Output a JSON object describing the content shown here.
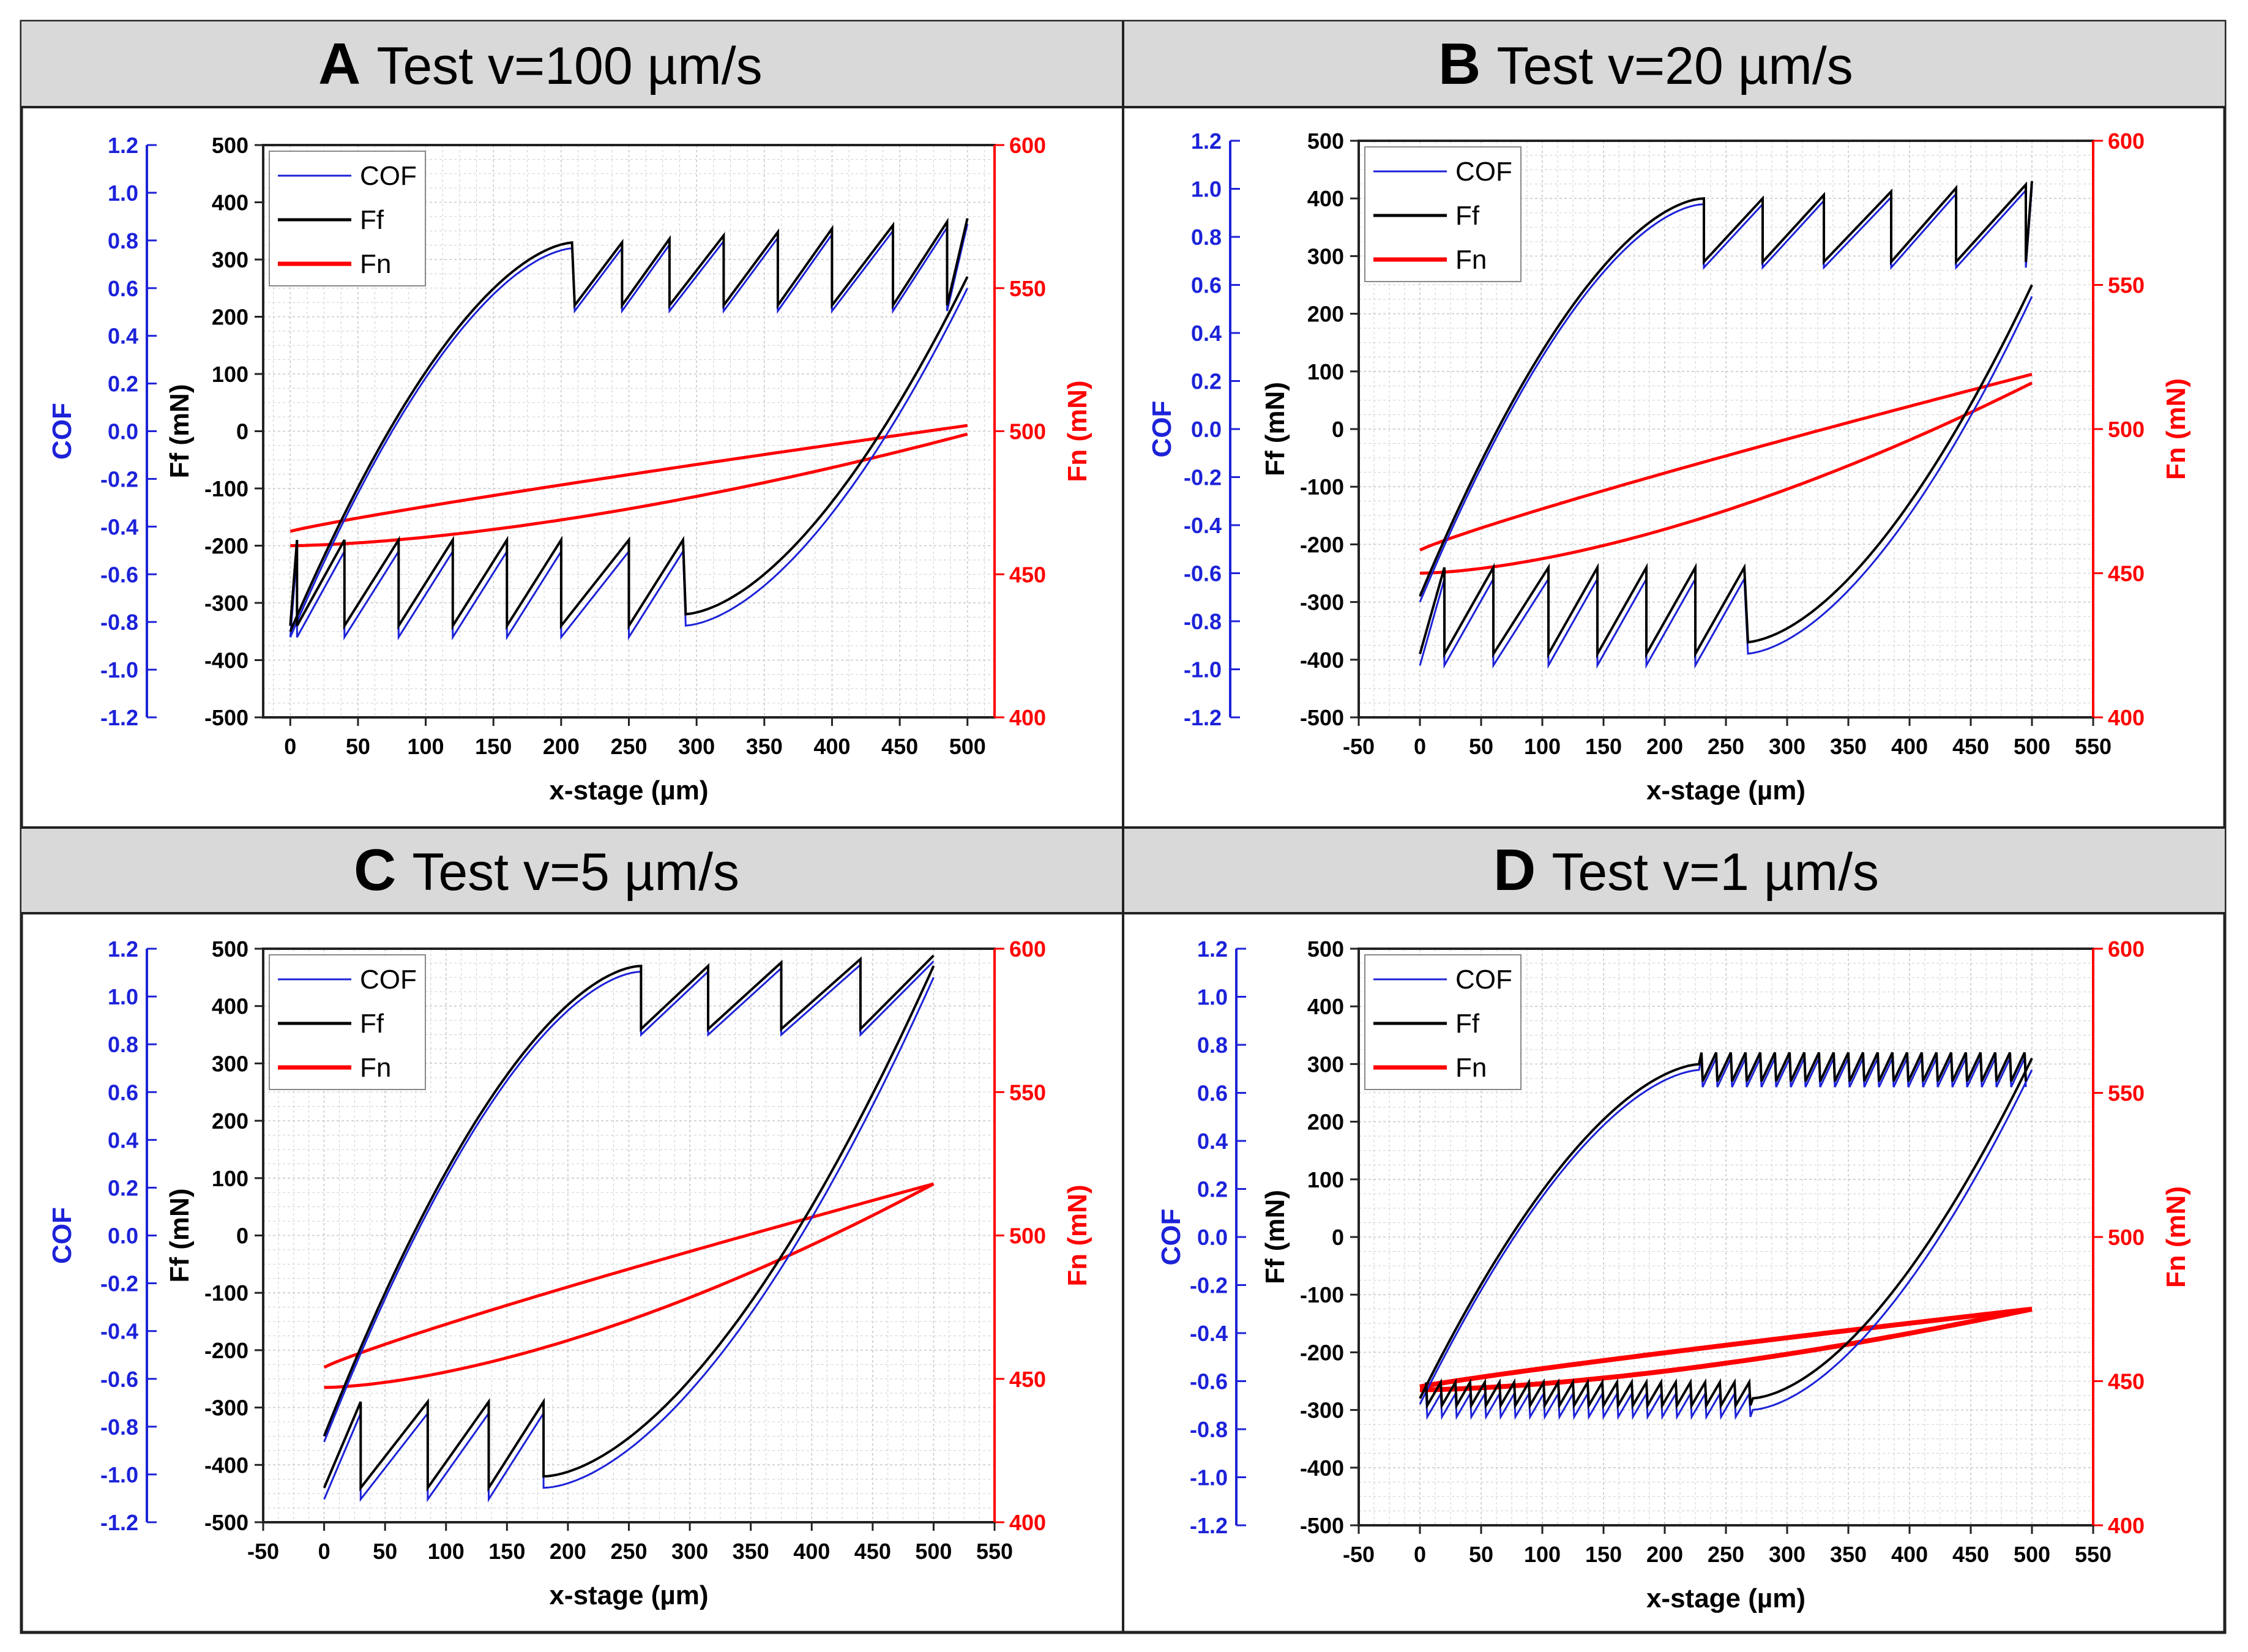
{
  "figure": {
    "colors": {
      "cof": "#1c22d8",
      "ff": "#000000",
      "fn": "#ff0000",
      "header_bg": "#d9d9d9",
      "grid": "#cfcfcf",
      "frame": "#222222"
    },
    "axis_labels": {
      "cof": "COF",
      "ff": "Ff (mN)",
      "fn": "Fn (mN)",
      "x": "x-stage (µm)"
    },
    "legend": [
      "COF",
      "Ff",
      "Fn"
    ]
  },
  "chart_data": [
    {
      "id": "A",
      "type": "line",
      "letter": "A",
      "title": "Test v=100 µm/s",
      "xlabel": "x-stage (µm)",
      "xlim": [
        -20,
        520
      ],
      "xticks": [
        0,
        50,
        100,
        150,
        200,
        250,
        300,
        350,
        400,
        450,
        500
      ],
      "cof_ticks": [
        "1.2",
        "1.0",
        "0.8",
        "0.6",
        "0.4",
        "0.2",
        "0.0",
        "-0.2",
        "-0.4",
        "-0.6",
        "-0.8",
        "-1.0",
        "-1.2"
      ],
      "ff_ticks": [
        "500",
        "400",
        "300",
        "200",
        "100",
        "0",
        "-100",
        "-200",
        "-300",
        "-400",
        "-500"
      ],
      "fn_ticks": [
        "600",
        "550",
        "500",
        "450",
        "400"
      ],
      "cof_range": [
        -1.2,
        1.2
      ],
      "ff_range": [
        -500,
        500
      ],
      "fn_range": [
        400,
        600
      ],
      "series": [
        {
          "name": "Ff",
          "values_mN": {
            "forward_start": -350,
            "forward_end_level": 330,
            "forward_drop": 110,
            "forward_slips": [
              210,
              245,
              280,
              320,
              360,
              400,
              445,
              485
            ],
            "backward_start": 270,
            "backward_end_level": -320,
            "backward_peaks": -230,
            "backward_slips": [
              290,
              250,
              200,
              160,
              120,
              80,
              40,
              5
            ]
          }
        },
        {
          "name": "Fn",
          "values_mN": {
            "upper_start": 465,
            "upper_end": 502,
            "lower_start": 460,
            "lower_end": 499
          }
        }
      ]
    },
    {
      "id": "B",
      "type": "line",
      "letter": "B",
      "title": "Test v=20 µm/s",
      "xlabel": "x-stage (µm)",
      "xlim": [
        -50,
        550
      ],
      "xticks": [
        -50,
        0,
        50,
        100,
        150,
        200,
        250,
        300,
        350,
        400,
        450,
        500,
        550
      ],
      "cof_ticks": [
        "1.2",
        "1.0",
        "0.8",
        "0.6",
        "0.4",
        "0.2",
        "0.0",
        "-0.2",
        "-0.4",
        "-0.6",
        "-0.8",
        "-1.0",
        "-1.2"
      ],
      "ff_ticks": [
        "500",
        "400",
        "300",
        "200",
        "100",
        "0",
        "-100",
        "-200",
        "-300",
        "-400",
        "-500"
      ],
      "fn_ticks": [
        "600",
        "550",
        "500",
        "450",
        "400"
      ],
      "cof_range": [
        -1.2,
        1.2
      ],
      "ff_range": [
        -500,
        500
      ],
      "fn_range": [
        400,
        600
      ],
      "series": [
        {
          "name": "Ff",
          "values_mN": {
            "forward_start": -290,
            "forward_end_level": 400,
            "forward_slips": [
              232,
              280,
              330,
              385,
              438,
              495
            ],
            "backward_start": 250,
            "backward_end_level": -370,
            "backward_slips": [
              265,
              225,
              185,
              145,
              105,
              60,
              20
            ]
          }
        },
        {
          "name": "Fn",
          "values_mN": {
            "upper_start": 458,
            "upper_end": 519,
            "lower_start": 450,
            "lower_end": 516
          }
        }
      ]
    },
    {
      "id": "C",
      "type": "line",
      "letter": "C",
      "title": "Test v=5 µm/s",
      "xlabel": "x-stage (µm)",
      "xlim": [
        -50,
        550
      ],
      "xticks": [
        -50,
        0,
        50,
        100,
        150,
        200,
        250,
        300,
        350,
        400,
        450,
        500,
        550
      ],
      "cof_ticks": [
        "1.2",
        "1.0",
        "0.8",
        "0.6",
        "0.4",
        "0.2",
        "0.0",
        "-0.2",
        "-0.4",
        "-0.6",
        "-0.8",
        "-1.0",
        "-1.2"
      ],
      "ff_ticks": [
        "500",
        "400",
        "300",
        "200",
        "100",
        "0",
        "-100",
        "-200",
        "-300",
        "-400",
        "-500"
      ],
      "fn_ticks": [
        "600",
        "550",
        "500",
        "450",
        "400"
      ],
      "cof_range": [
        -1.2,
        1.2
      ],
      "ff_range": [
        -500,
        500
      ],
      "fn_range": [
        400,
        600
      ],
      "series": [
        {
          "name": "Ff",
          "values_mN": {
            "forward_start": -350,
            "forward_end_level": 470,
            "forward_slips": [
              260,
              315,
              375,
              440
            ],
            "backward_start": 470,
            "backward_end_level": -420,
            "backward_slips": [
              180,
              135,
              85,
              30
            ]
          }
        },
        {
          "name": "Fn",
          "values_mN": {
            "upper_start": 454,
            "upper_end": 518,
            "lower_start": 447,
            "lower_end": 518
          }
        }
      ]
    },
    {
      "id": "D",
      "type": "line",
      "letter": "D",
      "title": "Test v=1 µm/s",
      "xlabel": "x-stage (µm)",
      "xlim": [
        -50,
        550
      ],
      "xticks": [
        -50,
        0,
        50,
        100,
        150,
        200,
        250,
        300,
        350,
        400,
        450,
        500,
        550
      ],
      "cof_ticks": [
        "1.2",
        "1.0",
        "0.8",
        "0.6",
        "0.4",
        "0.2",
        "0.0",
        "-0.2",
        "-0.4",
        "-0.6",
        "-0.8",
        "-1.0",
        "-1.2"
      ],
      "ff_ticks": [
        "500",
        "400",
        "300",
        "200",
        "100",
        "0",
        "-100",
        "-200",
        "-300",
        "-400",
        "-500"
      ],
      "fn_ticks": [
        "600",
        "550",
        "500",
        "450",
        "400"
      ],
      "cof_range": [
        -1.2,
        1.2
      ],
      "ff_range": [
        -500,
        500
      ],
      "fn_range": [
        400,
        600
      ],
      "series": [
        {
          "name": "Ff",
          "values_mN": {
            "forward_start": -280,
            "forward_end_level": 300,
            "stick_slip_amplitude": 50,
            "backward_start": 310,
            "backward_end_level": -280,
            "backward_stick_slip_amplitude": 40
          }
        },
        {
          "name": "Fn",
          "values_mN": {
            "upper_start": 448,
            "upper_end": 475,
            "lower_start": 447,
            "lower_end": 475
          }
        }
      ]
    }
  ]
}
